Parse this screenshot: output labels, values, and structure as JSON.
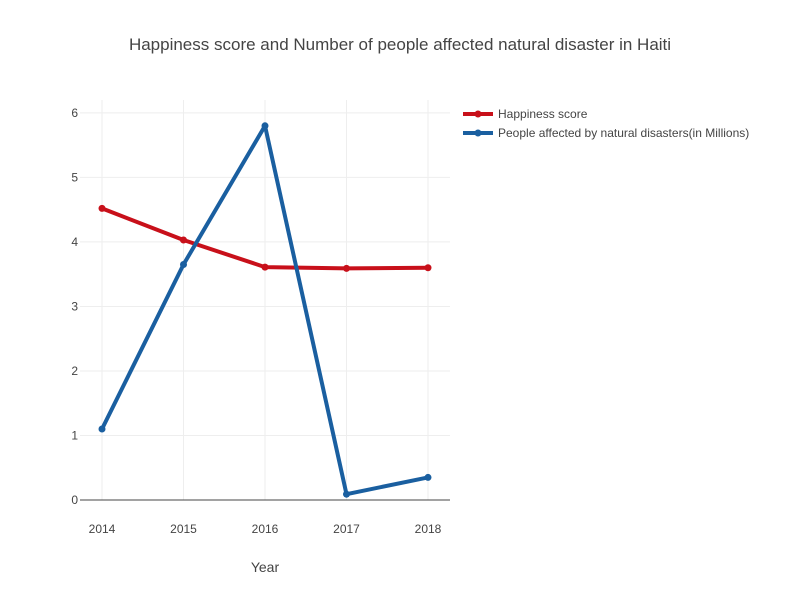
{
  "chart_data": {
    "type": "line",
    "title": "Happiness score and Number of people affected natural disaster in Haiti",
    "xlabel": "Year",
    "ylabel": "",
    "x": [
      2014,
      2015,
      2016,
      2017,
      2018
    ],
    "xticks": [
      "2014",
      "2015",
      "2016",
      "2017",
      "2018"
    ],
    "xlim": [
      2014,
      2018
    ],
    "ylim": [
      0,
      6.2
    ],
    "yticks": [
      0,
      1,
      2,
      3,
      4,
      5,
      6
    ],
    "grid": true,
    "legend_position": "top-right",
    "series": [
      {
        "name": "Happiness score",
        "color": "#c8101a",
        "values": [
          4.52,
          4.03,
          3.61,
          3.59,
          3.6
        ]
      },
      {
        "name": "People affected by natural disasters(in Millions)",
        "color": "#1a5fa0",
        "values": [
          1.1,
          3.65,
          5.8,
          0.09,
          0.35
        ]
      }
    ]
  }
}
